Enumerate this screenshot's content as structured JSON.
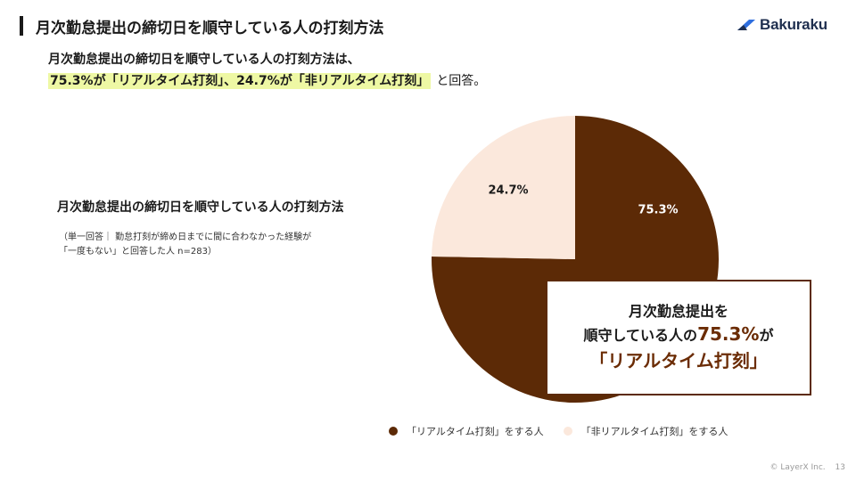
{
  "header": {
    "title": "月次勤怠提出の締切日を順守している人の打刻方法"
  },
  "logo": {
    "text": "Bakuraku",
    "color": "#1f2f4f",
    "accent": "#2f6fdf"
  },
  "summary": {
    "line1": "月次勤怠提出の締切日を順守している人の打刻方法は、",
    "line2_highlight": "75.3%が「リアルタイム打刻」、24.7%が「非リアルタイム打刻」",
    "line2_tail": "と回答。"
  },
  "chart_block": {
    "title": "月次勤怠提出の締切日を順守している人の打刻方法",
    "note_line1": "（単一回答｜ 勤怠打刻が締め日までに間に合わなかった経験が",
    "note_line2": "「一度もない」と回答した人 n=283）"
  },
  "chart_data": {
    "type": "pie",
    "slices": [
      {
        "label": "「リアルタイム打刻」をする人",
        "value": 75.3,
        "display": "75.3%",
        "color": "#5c2a06"
      },
      {
        "label": "「非リアルタイム打刻」をする人",
        "value": 24.7,
        "display": "24.7%",
        "color": "#fbe8dc"
      }
    ],
    "start_angle_deg": 0,
    "direction": "clockwise"
  },
  "callout": {
    "line1": "月次勤怠提出を",
    "line2_prefix": "順守している人の",
    "line2_pct": "75.3%",
    "line2_suffix": "が",
    "line3": "「リアルタイム打刻」"
  },
  "legend": [
    {
      "label": "「リアルタイム打刻」をする人",
      "color": "#5c2a06"
    },
    {
      "label": "「非リアルタイム打刻」をする人",
      "color": "#fbe8dc"
    }
  ],
  "footer": {
    "copyright": "© LayerX Inc.",
    "page": "13"
  }
}
